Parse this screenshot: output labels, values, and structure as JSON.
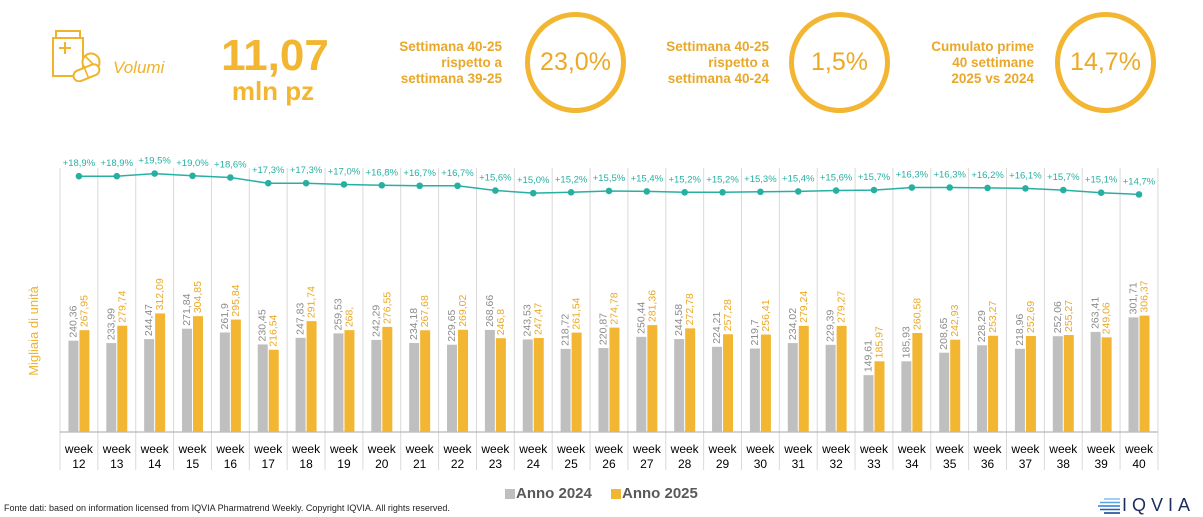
{
  "header": {
    "icon": "pill-document-icon",
    "volumi_label": "Volumi",
    "total_value": "11,07",
    "total_unit": "mln pz",
    "kpis": [
      {
        "lines": [
          "Settimana 40-25",
          "rispetto a",
          "settimana 39-25"
        ],
        "value": "23,0%"
      },
      {
        "lines": [
          "Settimana 40-25",
          "rispetto a",
          "settimana 40-24"
        ],
        "value": "1,5%"
      },
      {
        "lines": [
          "Cumulato prime",
          "40 settimane",
          "2025 vs 2024"
        ],
        "value": "14,7%"
      }
    ]
  },
  "chart_data": {
    "type": "bar",
    "x_tick_prefix": "week",
    "categories": [
      "12",
      "13",
      "14",
      "15",
      "16",
      "17",
      "18",
      "19",
      "20",
      "21",
      "22",
      "23",
      "24",
      "25",
      "26",
      "27",
      "28",
      "29",
      "30",
      "31",
      "32",
      "33",
      "34",
      "35",
      "36",
      "37",
      "38",
      "39",
      "40"
    ],
    "ylabel": "Migliaia di unità",
    "ylim": [
      0,
      800
    ],
    "grid": "vertical",
    "legend": "bottom-center",
    "series": [
      {
        "name": "Anno 2024",
        "color": "#bfbfbf",
        "values": [
          240.36,
          233.99,
          244.47,
          271.84,
          261.9,
          230.45,
          247.83,
          259.53,
          242.29,
          234.18,
          229.65,
          268.66,
          243.53,
          218.72,
          220.87,
          250.44,
          244.58,
          224.21,
          219.7,
          234.02,
          229.39,
          149.61,
          185.93,
          208.65,
          228.29,
          218.96,
          252.06,
          263.41,
          301.71
        ],
        "labels": [
          "240,36",
          "233,99",
          "244,47",
          "271,84",
          "261,9",
          "230,45",
          "247,83",
          "259,53",
          "242,29",
          "234,18",
          "229,65",
          "268,66",
          "243,53",
          "218,72",
          "220,87",
          "250,44",
          "244,58",
          "224,21",
          "219,7",
          "234,02",
          "229,39",
          "149,61",
          "185,93",
          "208,65",
          "228,29",
          "218,96",
          "252,06",
          "263,41",
          "301,71"
        ]
      },
      {
        "name": "Anno 2025",
        "color": "#f2b632",
        "values": [
          267.95,
          279.74,
          312.09,
          304.85,
          295.84,
          216.54,
          291.74,
          268,
          276.55,
          267.68,
          269.02,
          246.8,
          247.47,
          261.54,
          274.78,
          281.36,
          272.78,
          257.28,
          256.41,
          279.24,
          279.27,
          185.97,
          260.58,
          242.93,
          253.27,
          252.69,
          255.27,
          249.06,
          306.37
        ],
        "labels": [
          "267,95",
          "279,74",
          "312,09",
          "304,85",
          "295,84",
          "216,54",
          "291,74",
          "268,",
          "276,55",
          "267,68",
          "269,02",
          "246,8",
          "247,47",
          "261,54",
          "274,78",
          "281,36",
          "272,78",
          "257,28",
          "256,41",
          "279,24",
          "279,27",
          "185,97",
          "260,58",
          "242,93",
          "253,27",
          "252,69",
          "255,27",
          "249,06",
          "306,37"
        ]
      }
    ],
    "line": {
      "type": "line",
      "color": "#27b0a2",
      "y2lim": [
        -40,
        30
      ],
      "values": [
        18.9,
        18.9,
        19.5,
        19.0,
        18.6,
        17.3,
        17.3,
        17.0,
        16.8,
        16.7,
        16.7,
        15.6,
        15.0,
        15.2,
        15.5,
        15.4,
        15.2,
        15.2,
        15.3,
        15.4,
        15.6,
        15.7,
        16.3,
        16.3,
        16.2,
        16.1,
        15.7,
        15.1,
        14.7
      ],
      "labels": [
        "+18,9%",
        "+18,9%",
        "+19,5%",
        "+19,0%",
        "+18,6%",
        "+17,3%",
        "+17,3%",
        "+17,0%",
        "+16,8%",
        "+16,7%",
        "+16,7%",
        "+15,6%",
        "+15,0%",
        "+15,2%",
        "+15,5%",
        "+15,4%",
        "+15,2%",
        "+15,2%",
        "+15,3%",
        "+15,4%",
        "+15,6%",
        "+15,7%",
        "+16,3%",
        "+16,3%",
        "+16,2%",
        "+16,1%",
        "+15,7%",
        "+15,1%",
        "+14,7%"
      ]
    }
  },
  "footer": {
    "source": "Fonte dati: based on information licensed from IQVIA Pharmatrend Weekly. Copyright IQVIA. All rights reserved.",
    "logo_icon": "iqvia-logo-icon",
    "logo_text": "IQVIA"
  },
  "colors": {
    "accent": "#f2b632",
    "label_gold": "#e8a82a",
    "legend_text": "#595959",
    "logo_navy": "#1b2d5c"
  }
}
